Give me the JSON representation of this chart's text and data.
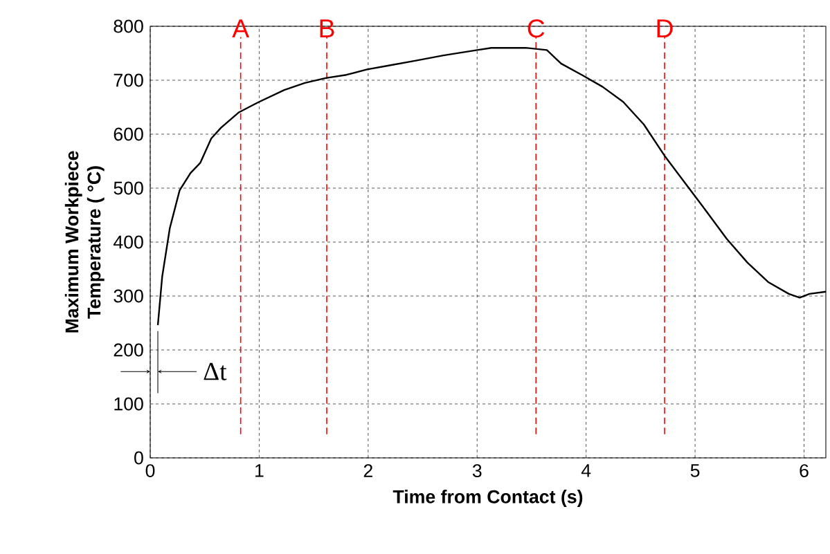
{
  "chart_data": {
    "type": "line",
    "xlabel": "Time from Contact (s)",
    "ylabel": "Maximum Workpiece Temperature ( °C)",
    "xlim": [
      0,
      6.2
    ],
    "ylim": [
      0,
      800
    ],
    "xticks": [
      0,
      1,
      2,
      3,
      4,
      5,
      6
    ],
    "yticks": [
      0,
      100,
      200,
      300,
      400,
      500,
      600,
      700,
      800
    ],
    "grid": true,
    "marker": "none",
    "line_style": "solid",
    "series": [
      {
        "color": "#000000",
        "x": [
          0.07,
          0.11,
          0.18,
          0.27,
          0.37,
          0.46,
          0.56,
          0.65,
          0.81,
          0.99,
          1.23,
          1.42,
          1.61,
          1.8,
          1.99,
          2.18,
          2.43,
          2.69,
          3.0,
          3.13,
          3.45,
          3.64,
          3.77,
          3.96,
          4.15,
          4.34,
          4.53,
          4.72,
          4.91,
          5.1,
          5.29,
          5.48,
          5.67,
          5.86,
          5.96,
          6.05,
          6.2
        ],
        "values": [
          246,
          336,
          426,
          496,
          528,
          547,
          592,
          612,
          640,
          659,
          682,
          695,
          704,
          710,
          720,
          727,
          736,
          746,
          756,
          760,
          760,
          756,
          731,
          710,
          688,
          660,
          618,
          560,
          509,
          458,
          406,
          362,
          326,
          304,
          297,
          304,
          308
        ]
      }
    ],
    "ref_lines": [
      {
        "axis": "x",
        "value": 0.83,
        "label": "A",
        "color": "#ff0000",
        "line_style": "dashed"
      },
      {
        "axis": "x",
        "value": 1.62,
        "label": "B",
        "color": "#ff0000",
        "line_style": "dashed"
      },
      {
        "axis": "x",
        "value": 3.54,
        "label": "C",
        "color": "#ff0000",
        "line_style": "dashed"
      },
      {
        "axis": "x",
        "value": 4.72,
        "label": "D",
        "color": "#ff0000",
        "line_style": "dashed"
      }
    ],
    "annotations": [
      "Δt"
    ]
  }
}
